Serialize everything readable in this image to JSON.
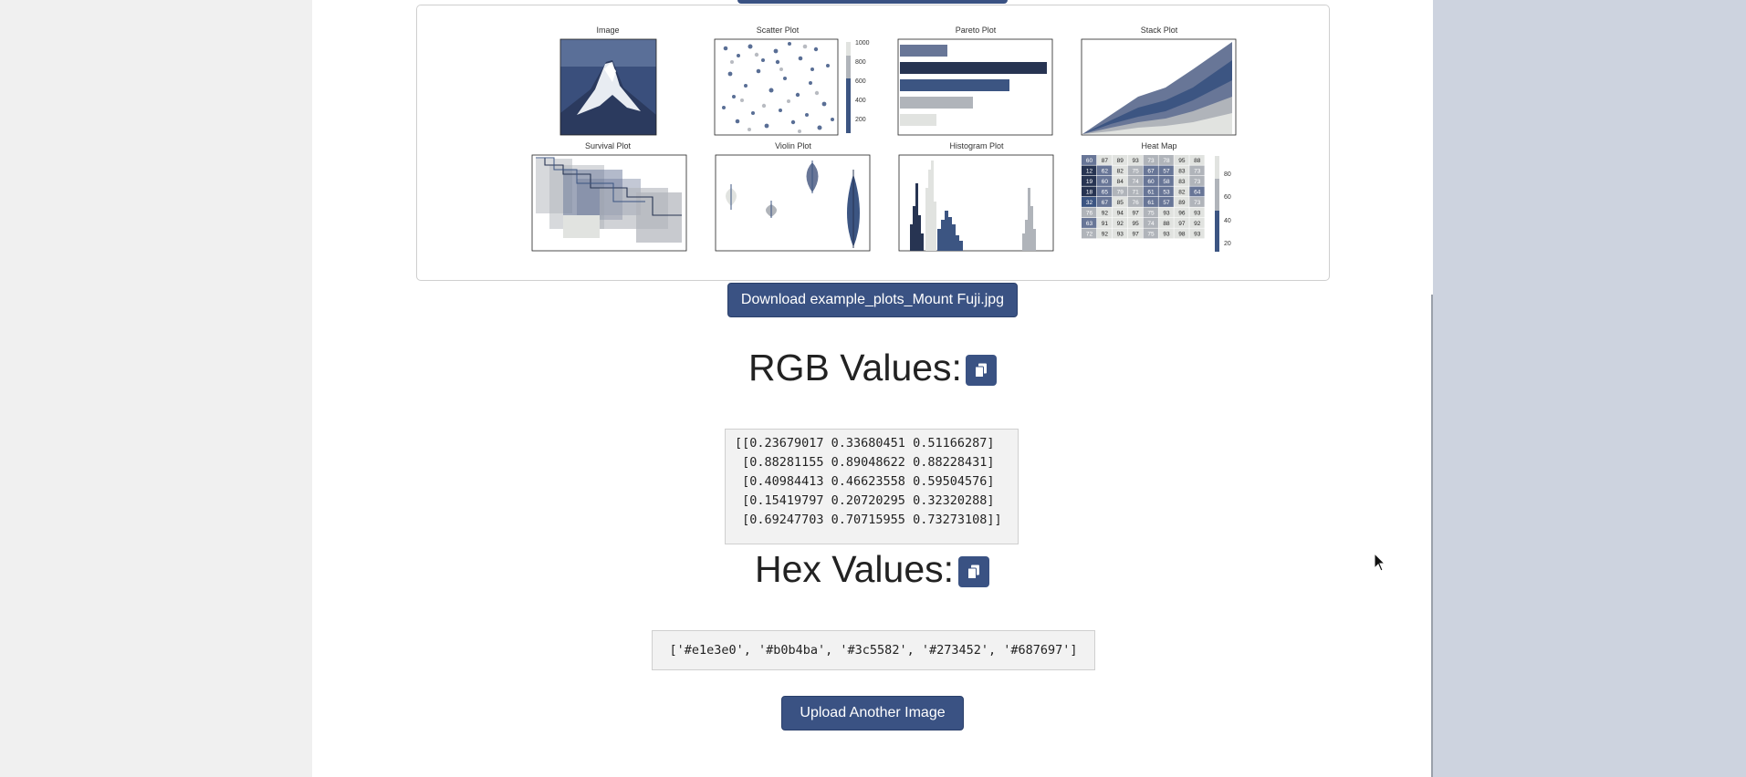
{
  "plots": {
    "titles": {
      "image": "Image",
      "scatter": "Scatter Plot",
      "pareto": "Pareto Plot",
      "stack": "Stack Plot",
      "survival": "Survival Plot",
      "violin": "Violin Plot",
      "histogram": "Histogram Plot",
      "heatmap": "Heat Map"
    },
    "scatter_colorbar_ticks": [
      "1000",
      "800",
      "600",
      "400",
      "200"
    ],
    "heatmap_colorbar_ticks": [
      "80",
      "60",
      "40",
      "20"
    ],
    "heatmap_values": [
      [
        "60",
        "87",
        "89",
        "93",
        "73",
        "78",
        "95",
        "88"
      ],
      [
        "12",
        "62",
        "82",
        "75",
        "67",
        "57",
        "83",
        "73"
      ],
      [
        "19",
        "60",
        "84",
        "74",
        "60",
        "58",
        "83",
        "73"
      ],
      [
        "18",
        "65",
        "79",
        "71",
        "61",
        "53",
        "82",
        "64"
      ],
      [
        "32",
        "67",
        "85",
        "76",
        "61",
        "57",
        "89",
        "73"
      ],
      [
        "76",
        "92",
        "94",
        "97",
        "75",
        "93",
        "96",
        "93"
      ],
      [
        "63",
        "91",
        "92",
        "95",
        "74",
        "88",
        "97",
        "92"
      ],
      [
        "72",
        "92",
        "93",
        "97",
        "75",
        "93",
        "98",
        "93"
      ]
    ],
    "palette": [
      "#e1e3e0",
      "#b0b4ba",
      "#3c5582",
      "#273452",
      "#687697"
    ]
  },
  "download_button_label": "Download example_plots_Mount Fuji.jpg",
  "rgb": {
    "heading": "RGB Values:",
    "lines": [
      "[[0.23679017 0.33680451 0.51166287]",
      " [0.88281155 0.89048622 0.88228431]",
      " [0.40984413 0.46623558 0.59504576]",
      " [0.15419797 0.20720295 0.32320288]",
      " [0.69247703 0.70715955 0.73273108]]"
    ]
  },
  "hex": {
    "heading": "Hex Values:",
    "value": "['#e1e3e0', '#b0b4ba', '#3c5582', '#273452', '#687697']"
  },
  "upload_button_label": "Upload Another Image",
  "icons": {
    "copy": "copy-icon",
    "cursor": "mouse-cursor-icon"
  }
}
